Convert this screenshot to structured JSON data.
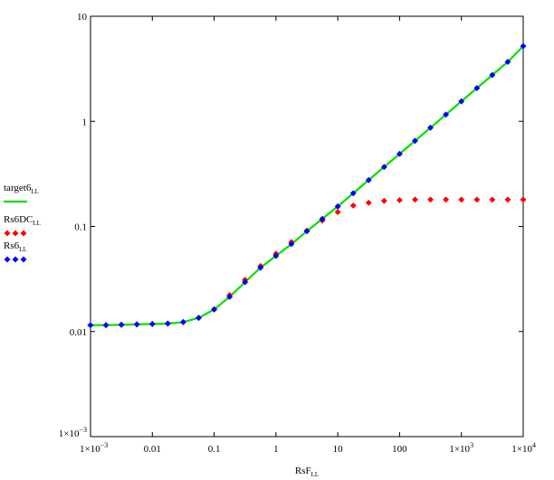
{
  "chart_data": {
    "type": "line",
    "xscale": "log",
    "yscale": "log",
    "xlim": [
      0.001,
      10000
    ],
    "ylim": [
      0.001,
      10
    ],
    "grid": false,
    "legend_position": "left",
    "xlabel": {
      "base": "RsF",
      "sub": "LL"
    },
    "ylabel": "",
    "xticks": [
      {
        "value": 0.001,
        "mant": "1×10",
        "exp": "−3"
      },
      {
        "value": 0.01,
        "mant": "0.01",
        "exp": ""
      },
      {
        "value": 0.1,
        "mant": "0.1",
        "exp": ""
      },
      {
        "value": 1,
        "mant": "1",
        "exp": ""
      },
      {
        "value": 10,
        "mant": "10",
        "exp": ""
      },
      {
        "value": 100,
        "mant": "100",
        "exp": ""
      },
      {
        "value": 1000,
        "mant": "1×10",
        "exp": "3"
      },
      {
        "value": 10000,
        "mant": "1×10",
        "exp": "4"
      }
    ],
    "yticks": [
      {
        "value": 0.001,
        "mant": "1×10",
        "exp": "−3"
      },
      {
        "value": 0.01,
        "mant": "0.01",
        "exp": ""
      },
      {
        "value": 0.1,
        "mant": "0.1",
        "exp": ""
      },
      {
        "value": 1,
        "mant": "1",
        "exp": ""
      },
      {
        "value": 10,
        "mant": "10",
        "exp": ""
      }
    ],
    "series": [
      {
        "name": "target6",
        "sub": "LL",
        "style": "line",
        "color": "#00e000",
        "x": [
          0.001,
          0.00178,
          0.00316,
          0.00562,
          0.01,
          0.0178,
          0.0316,
          0.0562,
          0.1,
          0.178,
          0.316,
          0.562,
          1,
          1.78,
          3.16,
          5.62,
          10,
          17.8,
          31.6,
          56.2,
          100,
          178,
          316,
          562,
          1000,
          1780,
          3160,
          5620,
          10000
        ],
        "y": [
          0.0115,
          0.0115,
          0.0116,
          0.0117,
          0.0118,
          0.0119,
          0.0123,
          0.0135,
          0.0162,
          0.0214,
          0.0295,
          0.0405,
          0.0525,
          0.068,
          0.09,
          0.118,
          0.155,
          0.207,
          0.276,
          0.368,
          0.49,
          0.653,
          0.87,
          1.16,
          1.55,
          2.07,
          2.76,
          3.68,
          5.2
        ]
      },
      {
        "name": "Rs6DC",
        "sub": "LL",
        "style": "diamond",
        "color": "#ff0000",
        "x": [
          0.001,
          0.00178,
          0.00316,
          0.00562,
          0.01,
          0.0178,
          0.0316,
          0.0562,
          0.1,
          0.178,
          0.316,
          0.562,
          1,
          1.78,
          3.16,
          5.62,
          10,
          17.8,
          31.6,
          56.2,
          100,
          178,
          316,
          562,
          1000,
          1780,
          3160,
          5620,
          10000
        ],
        "y": [
          0.0115,
          0.0115,
          0.0116,
          0.0117,
          0.0118,
          0.0119,
          0.0123,
          0.0135,
          0.0163,
          0.0222,
          0.031,
          0.042,
          0.055,
          0.071,
          0.091,
          0.114,
          0.137,
          0.158,
          0.168,
          0.175,
          0.178,
          0.18,
          0.18,
          0.18,
          0.18,
          0.18,
          0.18,
          0.18,
          0.18
        ]
      },
      {
        "name": "Rs6",
        "sub": "LL",
        "style": "diamond",
        "color": "#0000ff",
        "x": [
          0.001,
          0.00178,
          0.00316,
          0.00562,
          0.01,
          0.0178,
          0.0316,
          0.0562,
          0.1,
          0.178,
          0.316,
          0.562,
          1,
          1.78,
          3.16,
          5.62,
          10,
          17.8,
          31.6,
          56.2,
          100,
          178,
          316,
          562,
          1000,
          1780,
          3160,
          5620,
          10000
        ],
        "y": [
          0.0115,
          0.0115,
          0.0116,
          0.0117,
          0.0118,
          0.0119,
          0.0123,
          0.0135,
          0.0162,
          0.0214,
          0.0295,
          0.0405,
          0.0525,
          0.068,
          0.09,
          0.118,
          0.155,
          0.207,
          0.276,
          0.368,
          0.49,
          0.653,
          0.87,
          1.16,
          1.55,
          2.07,
          2.76,
          3.68,
          5.2
        ]
      }
    ]
  }
}
